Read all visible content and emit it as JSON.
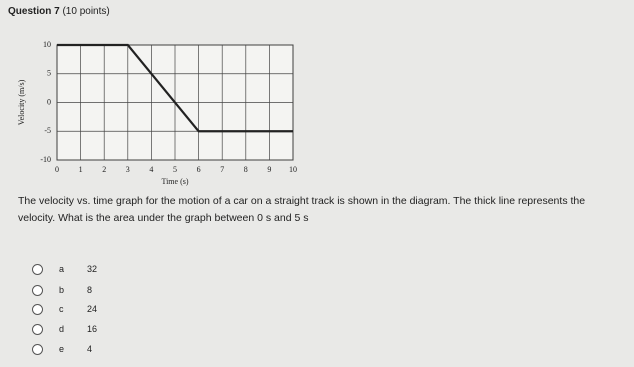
{
  "question": {
    "title": "Question 7",
    "points": "(10 points)"
  },
  "chart_data": {
    "type": "line",
    "x_label": "Time (s)",
    "y_label": "Velocity (m/s)",
    "x": [
      0,
      3,
      6,
      10
    ],
    "values": [
      10,
      10,
      -5,
      -5
    ],
    "color": "#222222",
    "xlim": [
      0,
      10
    ],
    "ylim": [
      -10,
      10
    ],
    "xticks": [
      0,
      1,
      2,
      3,
      4,
      5,
      6,
      7,
      8,
      9,
      10
    ],
    "yticks": [
      -10,
      -5,
      0,
      5,
      10
    ],
    "grid": true
  },
  "prompt": "The velocity vs. time graph for the motion of a car on a straight track is shown in the diagram. The thick line represents the velocity. What is the area under the graph between 0 s and 5 s",
  "options": [
    {
      "letter": "a",
      "answer": "32"
    },
    {
      "letter": "b",
      "answer": "8"
    },
    {
      "letter": "c",
      "answer": "24"
    },
    {
      "letter": "d",
      "answer": "16"
    },
    {
      "letter": "e",
      "answer": "4"
    }
  ]
}
